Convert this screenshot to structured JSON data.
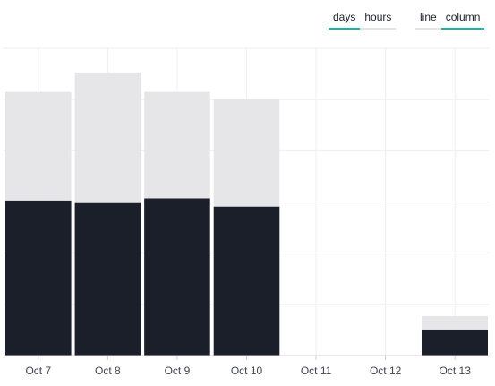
{
  "controls": {
    "range": [
      {
        "label": "days",
        "active": true
      },
      {
        "label": "hours",
        "active": false
      }
    ],
    "type": [
      {
        "label": "line",
        "active": false
      },
      {
        "label": "column",
        "active": true
      }
    ]
  },
  "colors": {
    "series_dark": "#1b1f2a",
    "series_light": "#e6e6e9",
    "grid": "#eeeeee",
    "axis": "#cfcfd4",
    "accent": "#14b8a6"
  },
  "chart_data": {
    "type": "bar",
    "stacked": true,
    "categories": [
      "Oct 7",
      "Oct 8",
      "Oct 9",
      "Oct 10",
      "Oct 11",
      "Oct 12",
      "Oct 13"
    ],
    "series": [
      {
        "values": [
          3.03,
          2.98,
          3.07,
          2.91,
          0,
          0,
          0.51
        ]
      },
      {
        "values": [
          2.12,
          2.55,
          2.08,
          2.1,
          0,
          0,
          0.26
        ]
      }
    ],
    "ylim": [
      0,
      6
    ],
    "grid": true,
    "legend": "none",
    "xlabel": "",
    "ylabel": ""
  }
}
